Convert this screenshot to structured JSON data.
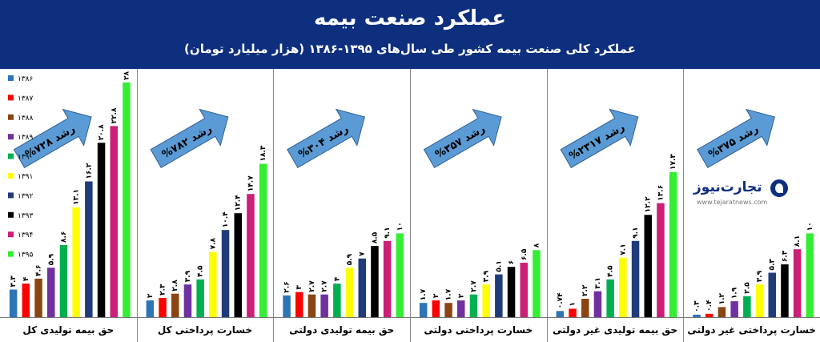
{
  "header": {
    "title": "عملکرد صنعت بیمه",
    "subtitle": "عملکرد کلی صنعت بیمه کشور طی سال‌های ۱۳۹۵-۱۳۸۶ (هزار میلیارد تومان)"
  },
  "logo": {
    "name": "تجارت‌نیوز",
    "url": "www.tejaratnews.com"
  },
  "colors": {
    "banner": "#0d2f7e",
    "series": [
      "#2e75b6",
      "#ff0000",
      "#8b4513",
      "#7030a0",
      "#00b050",
      "#ffff00",
      "#1f3b7a",
      "#000000",
      "#cc1f78",
      "#33ee33"
    ],
    "arrow": "#5b9bd5"
  },
  "chart_data": {
    "type": "bar",
    "legend_position": "top-left",
    "years": [
      "۱۳۸۶",
      "۱۳۸۷",
      "۱۳۸۸",
      "۱۳۸۹",
      "۱۳۹۰",
      "۱۳۹۱",
      "۱۳۹۲",
      "۱۳۹۳",
      "۱۳۹۴",
      "۱۳۹۵"
    ],
    "groups": [
      {
        "label": "حق بیمه تولیدی کل",
        "growth": "رشد ۷۲۸%",
        "values": [
          3.3,
          4,
          4.6,
          5.9,
          8.6,
          13.1,
          16.2,
          20.8,
          22.8,
          28
        ],
        "value_labels": [
          "۳.۳",
          "۴",
          "۴.۶",
          "۵.۹",
          "۸.۶",
          "۱۳.۱",
          "۱۶.۲",
          "۲۰.۸",
          "۲۲.۸",
          "۲۸"
        ]
      },
      {
        "label": "خسارت پرداختی کل",
        "growth": "رشد ۷۸۲%",
        "values": [
          2,
          2.3,
          2.8,
          3.9,
          4.5,
          7.8,
          10.4,
          12.4,
          14.7,
          18.3
        ],
        "value_labels": [
          "۲",
          "۲.۳",
          "۲.۸",
          "۳.۹",
          "۴.۵",
          "۷.۸",
          "۱۰.۴",
          "۱۲.۴",
          "۱۴.۷",
          "۱۸.۳"
        ]
      },
      {
        "label": "حق بیمه تولیدی دولتی",
        "growth": "رشد ۳۰۴%",
        "values": [
          2.6,
          3,
          2.7,
          2.7,
          4,
          5.9,
          7,
          8.5,
          9.1,
          10
        ],
        "value_labels": [
          "۲.۶",
          "۳",
          "۲.۷",
          "۲.۷",
          "۴",
          "۵.۹",
          "۷",
          "۸.۵",
          "۹.۱",
          "۱۰"
        ]
      },
      {
        "label": "خسارت پرداختی دولتی",
        "growth": "رشد ۳۵۷%",
        "values": [
          1.7,
          2,
          1.7,
          2,
          2.7,
          3.9,
          5.1,
          6,
          6.5,
          8
        ],
        "value_labels": [
          "۱.۷",
          "۲",
          "۱.۷",
          "۲",
          "۲.۷",
          "۳.۹",
          "۵.۱",
          "۶",
          "۶.۵",
          "۸"
        ]
      },
      {
        "label": "حق بیمه تولیدی غیر دولتی",
        "growth": "رشد ۲۳۱۷%",
        "values": [
          0.74,
          1,
          2.2,
          3.1,
          4.5,
          7.1,
          9.1,
          12.2,
          13.6,
          17.3
        ],
        "value_labels": [
          "۰.۷۴",
          "۱",
          "۲.۲",
          "۳.۱",
          "۴.۵",
          "۷.۱",
          "۹.۱",
          "۱۲.۲",
          "۱۳.۶",
          "۱۷.۳"
        ]
      },
      {
        "label": "خسارت پرداختی غیر دولتی",
        "growth": "رشد ۳۷۵%",
        "values": [
          0.3,
          0.4,
          1.2,
          1.9,
          2.5,
          3.9,
          5.3,
          6.3,
          8.1,
          10
        ],
        "value_labels": [
          "۰.۳",
          "۰.۴",
          "۱.۲",
          "۱.۹",
          "۲.۵",
          "۳.۹",
          "۵.۳",
          "۶.۳",
          "۸.۱",
          "۱۰"
        ]
      }
    ]
  }
}
